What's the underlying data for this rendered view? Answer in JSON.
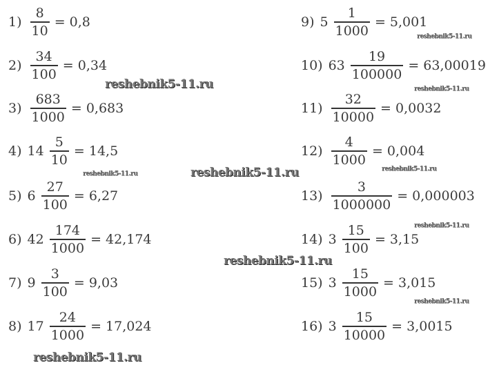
{
  "left": [
    {
      "label": "1)",
      "whole": "",
      "num": "8",
      "den": "10",
      "result": "= 0,8"
    },
    {
      "label": "2)",
      "whole": "",
      "num": "34",
      "den": "100",
      "result": "= 0,34"
    },
    {
      "label": "3)",
      "whole": "",
      "num": "683",
      "den": "1000",
      "result": "= 0,683"
    },
    {
      "label": "4)",
      "whole": "14",
      "num": "5",
      "den": "10",
      "result": "= 14,5"
    },
    {
      "label": "5)",
      "whole": "6",
      "num": "27",
      "den": "100",
      "result": "= 6,27"
    },
    {
      "label": "6)",
      "whole": "42",
      "num": "174",
      "den": "1000",
      "result": "= 42,174"
    },
    {
      "label": "7)",
      "whole": "9",
      "num": "3",
      "den": "100",
      "result": "= 9,03"
    },
    {
      "label": "8)",
      "whole": "17",
      "num": "24",
      "den": "1000",
      "result": "= 17,024"
    }
  ],
  "right": [
    {
      "label": "9)",
      "whole": "5",
      "num": "1",
      "den": "1000",
      "result": "= 5,001"
    },
    {
      "label": "10)",
      "whole": "63",
      "num": "19",
      "den": "100000",
      "result": "= 63,00019"
    },
    {
      "label": "11)",
      "whole": "",
      "num": "32",
      "den": "10000",
      "result": "= 0,0032"
    },
    {
      "label": "12)",
      "whole": "",
      "num": "4",
      "den": "1000",
      "result": "= 0,004"
    },
    {
      "label": "13)",
      "whole": "",
      "num": "3",
      "den": "1000000",
      "result": "= 0,000003"
    },
    {
      "label": "14)",
      "whole": "3",
      "num": "15",
      "den": "100",
      "result": "= 3,15"
    },
    {
      "label": "15)",
      "whole": "3",
      "num": "15",
      "den": "1000",
      "result": "= 3,015"
    },
    {
      "label": "16)",
      "whole": "3",
      "num": "15",
      "den": "10000",
      "result": "= 3,0015"
    }
  ],
  "watermark": "reshebnik5-11.ru"
}
